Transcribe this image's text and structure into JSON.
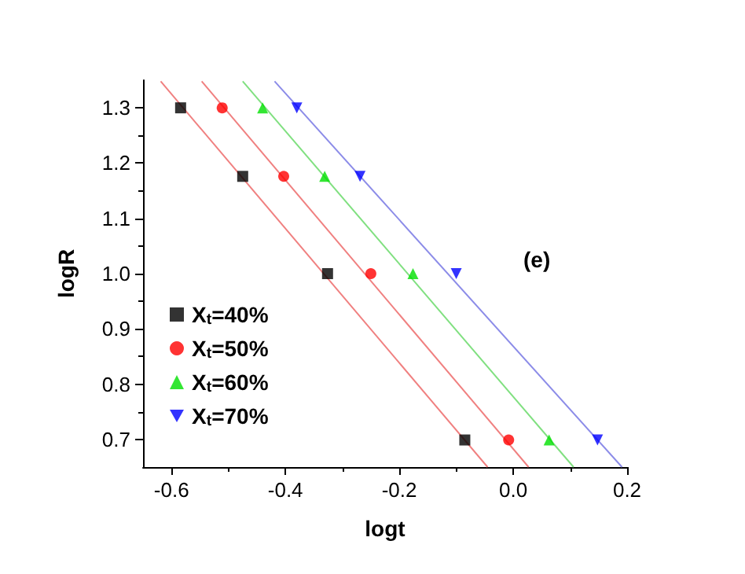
{
  "chart_data": {
    "type": "scatter",
    "xlabel": "logt",
    "ylabel": "logR",
    "annotations": [
      "(e)"
    ],
    "xlim": [
      -0.65,
      0.2
    ],
    "xticks": [
      -0.6,
      -0.4,
      -0.2,
      {
        "value": 0,
        "label": "0.0"
      },
      0.2
    ],
    "ylim": [
      0.65,
      1.35
    ],
    "yticks": [
      0.7,
      0.8,
      0.9,
      {
        "value": 1,
        "label": "1.0"
      },
      1.1,
      1.2,
      1.3
    ],
    "grid": false,
    "legend": "left",
    "series": [
      {
        "name": "X$_{t}$=40%",
        "color": "#000000",
        "marker": "square",
        "x": [
          -0.584,
          -0.475,
          -0.326,
          -0.085
        ],
        "values": [
          1.3,
          1.176,
          1.0,
          0.699
        ]
      },
      {
        "name": "X$_{t}$=50%",
        "color": "#ff0000",
        "marker": "circle",
        "x": [
          -0.511,
          -0.403,
          -0.25,
          -0.008
        ],
        "values": [
          1.3,
          1.176,
          1.0,
          0.699
        ]
      },
      {
        "name": "X$_{t}$=60%",
        "color": "#00e000",
        "marker": "triangle",
        "x": [
          -0.44,
          -0.331,
          -0.176,
          0.063
        ],
        "values": [
          1.3,
          1.176,
          1.0,
          0.699
        ]
      },
      {
        "name": "X$_{t}$=70%",
        "color": "#0000ff",
        "marker": "triangle-down",
        "x": [
          -0.38,
          -0.269,
          -0.1,
          0.148
        ],
        "values": [
          1.3,
          1.176,
          1.0,
          0.699
        ]
      },
      {
        "type": "line",
        "color": "#f08080",
        "marker": "none",
        "x": [
          -0.619,
          -0.045
        ],
        "values": [
          1.348,
          0.65
        ]
      },
      {
        "type": "line",
        "color": "#f08080",
        "marker": "none",
        "x": [
          -0.547,
          0.027
        ],
        "values": [
          1.348,
          0.65
        ]
      },
      {
        "type": "line",
        "color": "#80e080",
        "marker": "none",
        "x": [
          -0.475,
          0.106
        ],
        "values": [
          1.348,
          0.65
        ]
      },
      {
        "type": "line",
        "color": "#8c8ce8",
        "marker": "none",
        "x": [
          -0.419,
          0.191
        ],
        "values": [
          1.348,
          0.65
        ]
      }
    ]
  }
}
